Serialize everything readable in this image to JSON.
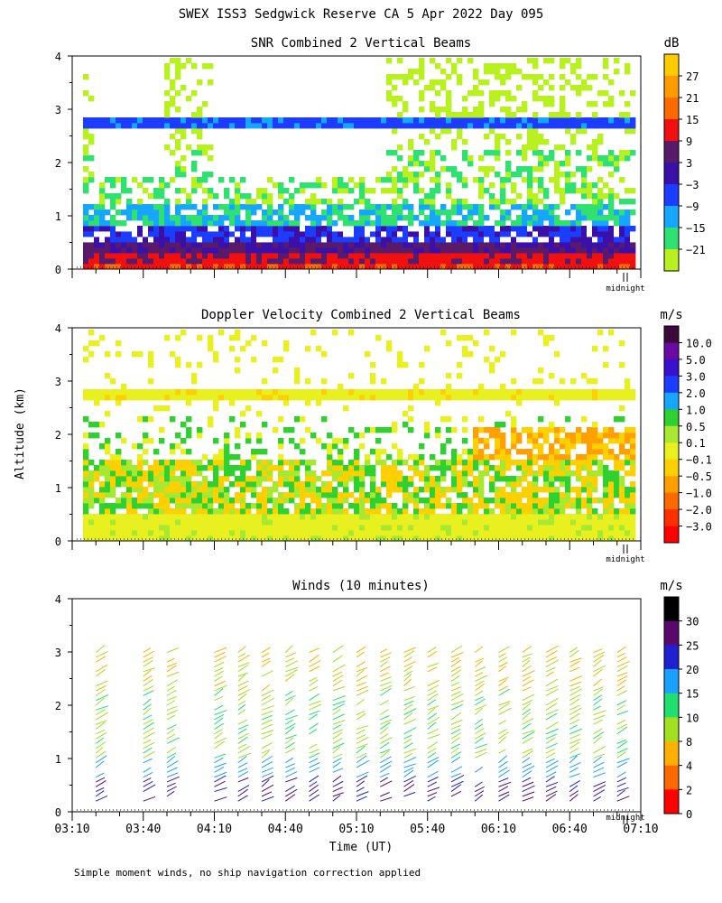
{
  "main_title": "SWEX ISS3 Sedgwick Reserve CA   5 Apr 2022 Day 095",
  "y_axis_label": "Altitude (km)",
  "x_axis_label": "Time (UT)",
  "footnote": "Simple moment winds, no ship navigation correction applied",
  "midnight_label": "midnight",
  "chart_data": [
    {
      "id": "snr",
      "type": "heatmap",
      "title": "SNR Combined 2 Vertical Beams",
      "unit": "dB",
      "ylim": [
        0,
        4
      ],
      "yticks": [
        "0",
        "1",
        "2",
        "3",
        "4"
      ],
      "colorbar_ticks": [
        "27",
        "21",
        "15",
        "9",
        "3",
        "−3",
        "−9",
        "−15",
        "−21"
      ],
      "colorbar_colors": [
        "#ffcc00",
        "#ff9a00",
        "#ff6a00",
        "#f01010",
        "#5a1a6a",
        "#3a10a8",
        "#1c3cff",
        "#17a6ff",
        "#30e070",
        "#b8f020"
      ],
      "grid": false
    },
    {
      "id": "doppler",
      "type": "heatmap",
      "title": "Doppler Velocity Combined 2 Vertical Beams",
      "unit": "m/s",
      "ylim": [
        0,
        4
      ],
      "yticks": [
        "0",
        "1",
        "2",
        "3",
        "4"
      ],
      "colorbar_ticks": [
        "10.0",
        "5.0",
        "3.0",
        "2.0",
        "1.0",
        "0.5",
        "0.1",
        "−0.1",
        "−0.5",
        "−1.0",
        "−2.0",
        "−3.0"
      ],
      "colorbar_colors": [
        "#3a0a3a",
        "#6a0aa0",
        "#3a10d0",
        "#1c3cff",
        "#17a6ff",
        "#30d030",
        "#a8e830",
        "#e8f020",
        "#ffd000",
        "#ffa000",
        "#ff6a00",
        "#ff3000",
        "#ff0000"
      ],
      "grid": false
    },
    {
      "id": "winds",
      "type": "scatter",
      "title": "Winds (10 minutes)",
      "unit": "m/s",
      "ylim": [
        0,
        4
      ],
      "yticks": [
        "0",
        "1",
        "2",
        "3",
        "4"
      ],
      "x_ticklabels": [
        "03:10",
        "03:40",
        "04:10",
        "04:40",
        "05:10",
        "05:40",
        "06:10",
        "06:40",
        "07:10"
      ],
      "colorbar_ticks": [
        "30",
        "25",
        "20",
        "15",
        "10",
        "8",
        "4",
        "2",
        "0"
      ],
      "colorbar_colors": [
        "#000000",
        "#5a0a6a",
        "#2020d0",
        "#1aa0ff",
        "#20e070",
        "#a0e020",
        "#ffb000",
        "#ff6a00",
        "#ff0000"
      ],
      "profile_times": [
        "03:20",
        "03:40",
        "03:50",
        "04:10",
        "04:20",
        "04:30",
        "04:40",
        "04:50",
        "05:00",
        "05:10",
        "05:20",
        "05:30",
        "05:40",
        "05:50",
        "06:00",
        "06:10",
        "06:20",
        "06:30",
        "06:40",
        "06:50",
        "07:00"
      ],
      "grid": false
    }
  ]
}
